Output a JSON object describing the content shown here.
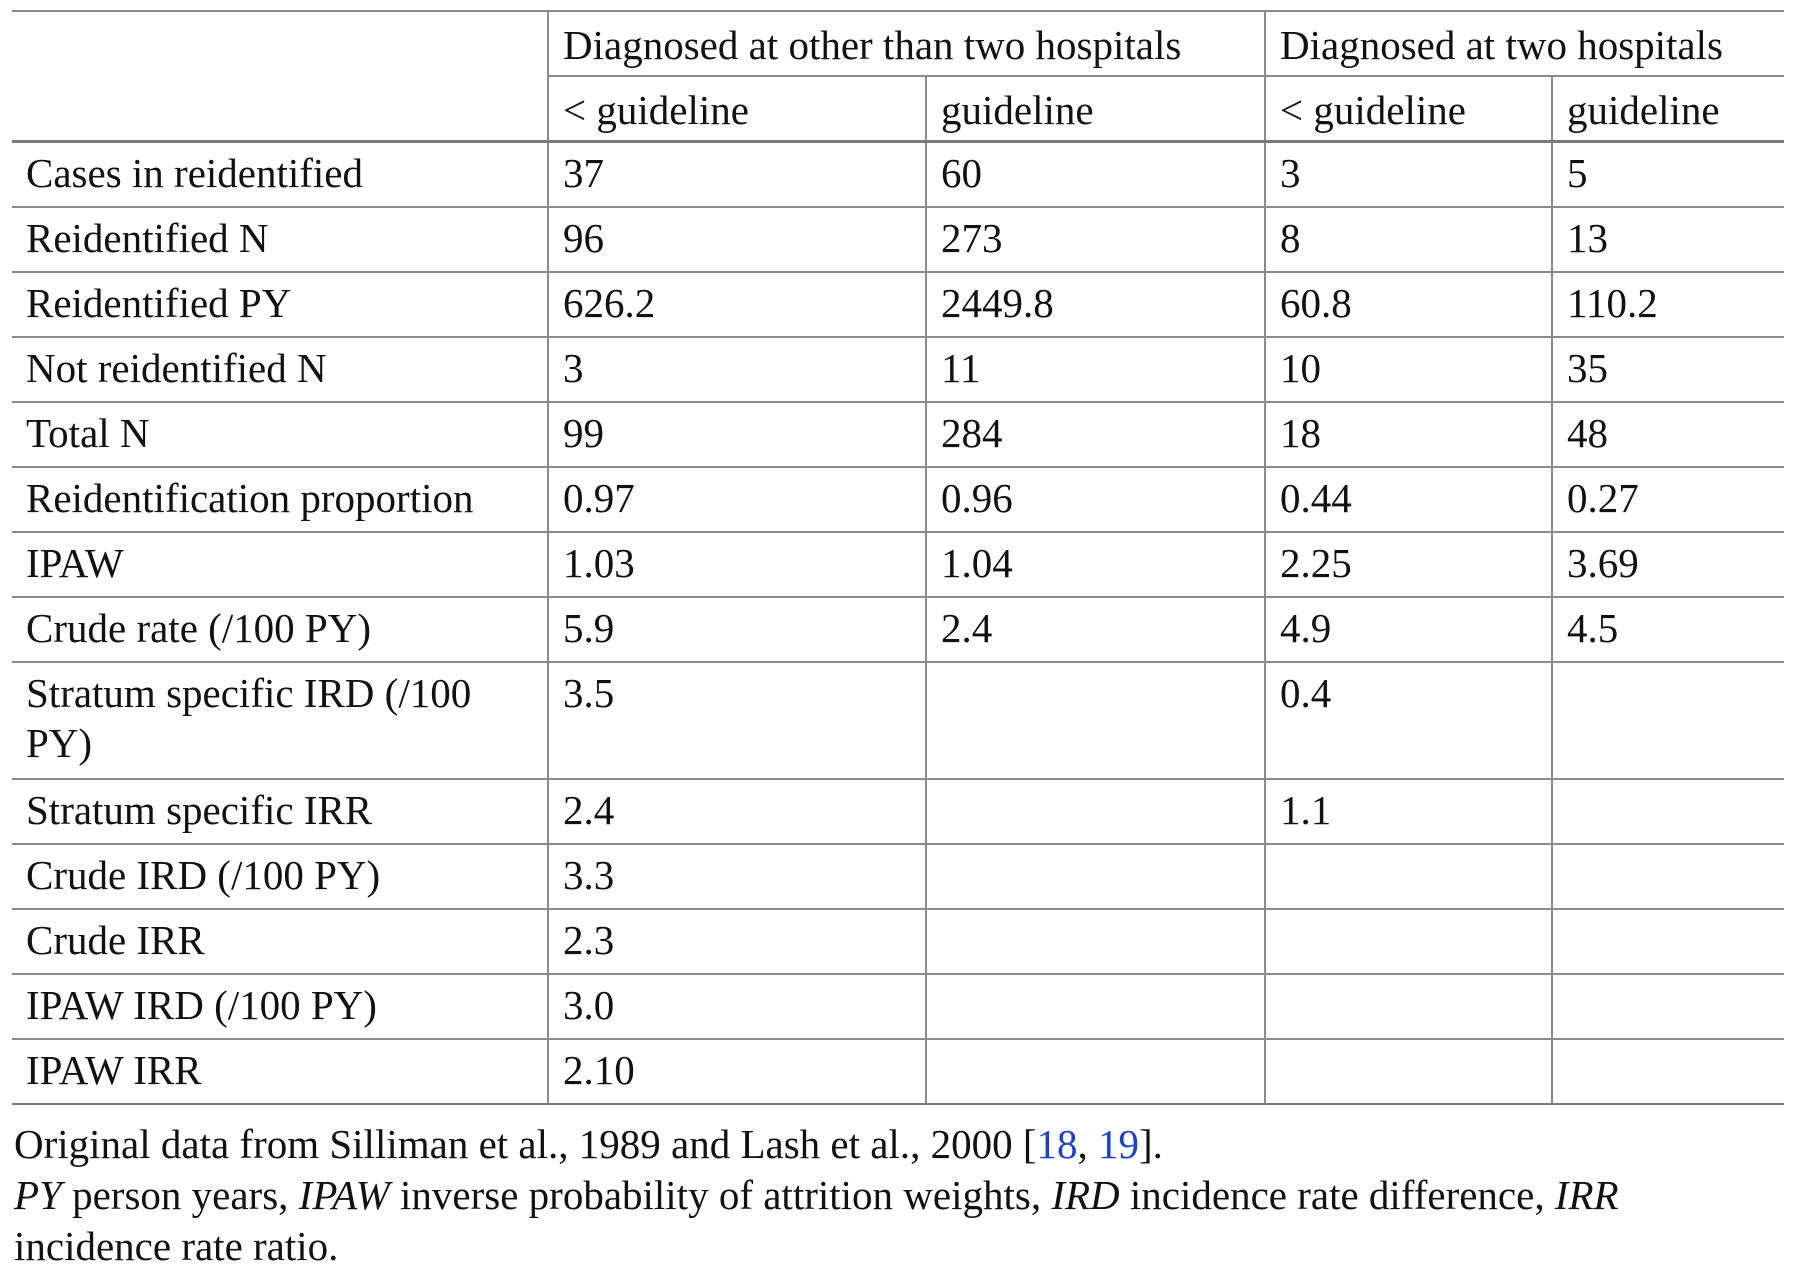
{
  "table": {
    "group_headers": [
      "Diagnosed at other than two hospitals",
      "Diagnosed at two hospitals"
    ],
    "sub_headers": [
      "< guideline",
      "guideline",
      "< guideline",
      "guideline"
    ],
    "rows": [
      {
        "label": "Cases in reidentified",
        "cells": [
          "37",
          "60",
          "3",
          "5"
        ]
      },
      {
        "label": "Reidentified N",
        "cells": [
          "96",
          "273",
          "8",
          "13"
        ]
      },
      {
        "label": "Reidentified PY",
        "cells": [
          "626.2",
          "2449.8",
          "60.8",
          "110.2"
        ]
      },
      {
        "label": "Not reidentified N",
        "cells": [
          "3",
          "11",
          "10",
          "35"
        ]
      },
      {
        "label": "Total N",
        "cells": [
          "99",
          "284",
          "18",
          "48"
        ]
      },
      {
        "label": "Reidentification proportion",
        "cells": [
          "0.97",
          "0.96",
          "0.44",
          "0.27"
        ]
      },
      {
        "label": "IPAW",
        "cells": [
          "1.03",
          "1.04",
          "2.25",
          "3.69"
        ]
      },
      {
        "label": "Crude rate (/100 PY)",
        "cells": [
          "5.9",
          "2.4",
          "4.9",
          "4.5"
        ]
      },
      {
        "label": "Stratum specific IRD (/100 PY)",
        "cells": [
          "3.5",
          "",
          "0.4",
          ""
        ]
      },
      {
        "label": "Stratum specific IRR",
        "cells": [
          "2.4",
          "",
          "1.1",
          ""
        ]
      },
      {
        "label": "Crude IRD (/100 PY)",
        "cells": [
          "3.3",
          "",
          "",
          ""
        ]
      },
      {
        "label": "Crude IRR",
        "cells": [
          "2.3",
          "",
          "",
          ""
        ]
      },
      {
        "label": "IPAW IRD (/100 PY)",
        "cells": [
          "3.0",
          "",
          "",
          ""
        ]
      },
      {
        "label": "IPAW IRR",
        "cells": [
          "2.10",
          "",
          "",
          ""
        ]
      }
    ]
  },
  "footnote": {
    "source_prefix": "Original data from Silliman et al., 1989 and Lash et al., 2000 [",
    "ref1": "18",
    "ref_sep": ", ",
    "ref2": "19",
    "source_suffix": "].",
    "abbreviations": [
      {
        "abbr": "PY",
        "def": " person years, "
      },
      {
        "abbr": "IPAW",
        "def": " inverse probability of attrition weights, "
      },
      {
        "abbr": "IRD",
        "def": " incidence rate difference, "
      },
      {
        "abbr": "IRR",
        "def": " incidence rate ratio."
      }
    ]
  },
  "colors": {
    "rule": "#8a8a8a",
    "link": "#1a3fd6"
  }
}
